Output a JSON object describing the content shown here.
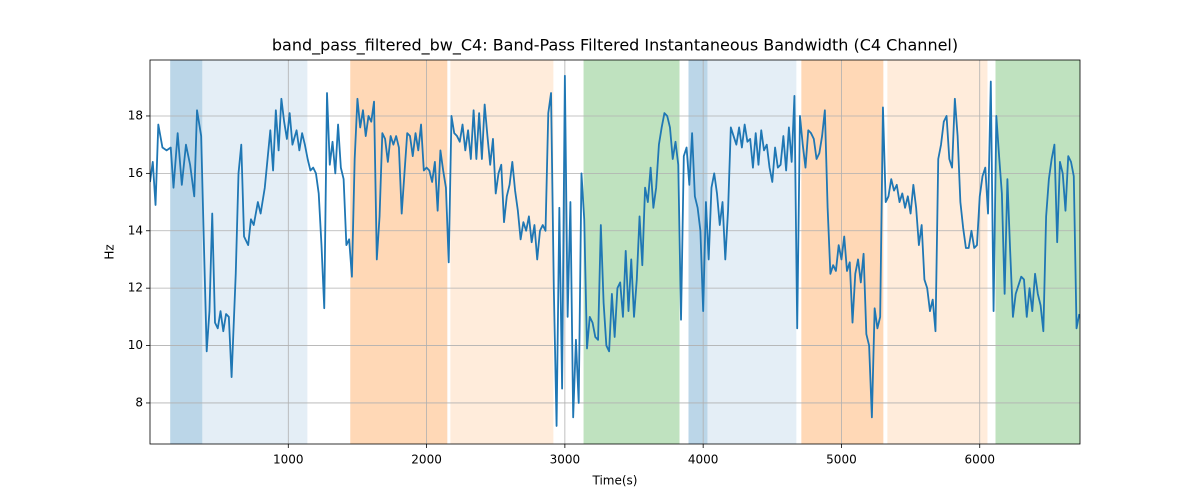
{
  "chart_data": {
    "type": "line",
    "title": "band_pass_filtered_bw_C4: Band-Pass Filtered Instantaneous Bandwidth (C4 Channel)",
    "xlabel": "Time(s)",
    "ylabel": "Hz",
    "xlim": [
      0,
      6725
    ],
    "ylim": [
      6.57,
      19.95
    ],
    "xticks": [
      1000,
      2000,
      3000,
      4000,
      5000,
      6000
    ],
    "yticks": [
      8,
      10,
      12,
      14,
      16,
      18
    ],
    "grid": true,
    "regions": [
      {
        "x0": 146,
        "x1": 378,
        "color": "#1f77b4",
        "alpha": 0.3
      },
      {
        "x0": 378,
        "x1": 1138,
        "color": "#1f77b4",
        "alpha": 0.12
      },
      {
        "x0": 1448,
        "x1": 2150,
        "color": "#ff7f0e",
        "alpha": 0.3
      },
      {
        "x0": 2172,
        "x1": 2917,
        "color": "#ff7f0e",
        "alpha": 0.15
      },
      {
        "x0": 3135,
        "x1": 3829,
        "color": "#2ca02c",
        "alpha": 0.3
      },
      {
        "x0": 3894,
        "x1": 4031,
        "color": "#1f77b4",
        "alpha": 0.3
      },
      {
        "x0": 4031,
        "x1": 4674,
        "color": "#1f77b4",
        "alpha": 0.12
      },
      {
        "x0": 4710,
        "x1": 5303,
        "color": "#ff7f0e",
        "alpha": 0.3
      },
      {
        "x0": 5332,
        "x1": 6056,
        "color": "#ff7f0e",
        "alpha": 0.15
      },
      {
        "x0": 6114,
        "x1": 6725,
        "color": "#2ca02c",
        "alpha": 0.3
      }
    ],
    "x": [
      0,
      20,
      40,
      60,
      90,
      120,
      150,
      170,
      200,
      230,
      260,
      290,
      320,
      340,
      370,
      390,
      410,
      430,
      450,
      470,
      490,
      510,
      530,
      550,
      570,
      590,
      620,
      640,
      660,
      680,
      710,
      730,
      750,
      780,
      800,
      830,
      850,
      870,
      890,
      910,
      930,
      950,
      970,
      990,
      1010,
      1030,
      1060,
      1080,
      1100,
      1120,
      1140,
      1160,
      1180,
      1200,
      1220,
      1240,
      1260,
      1280,
      1300,
      1320,
      1340,
      1360,
      1380,
      1400,
      1420,
      1440,
      1460,
      1480,
      1500,
      1520,
      1540,
      1560,
      1580,
      1600,
      1620,
      1640,
      1660,
      1680,
      1700,
      1720,
      1740,
      1760,
      1780,
      1800,
      1820,
      1840,
      1860,
      1880,
      1900,
      1920,
      1940,
      1960,
      1980,
      2000,
      2020,
      2040,
      2060,
      2080,
      2100,
      2120,
      2140,
      2160,
      2180,
      2200,
      2220,
      2240,
      2260,
      2280,
      2300,
      2320,
      2340,
      2360,
      2380,
      2400,
      2420,
      2440,
      2460,
      2480,
      2500,
      2520,
      2540,
      2560,
      2580,
      2600,
      2620,
      2640,
      2660,
      2680,
      2700,
      2720,
      2740,
      2760,
      2780,
      2800,
      2820,
      2840,
      2860,
      2880,
      2900,
      2920,
      2940,
      2960,
      2980,
      3000,
      3020,
      3040,
      3060,
      3080,
      3100,
      3120,
      3140,
      3160,
      3180,
      3200,
      3220,
      3240,
      3260,
      3280,
      3300,
      3320,
      3340,
      3360,
      3380,
      3400,
      3420,
      3440,
      3460,
      3480,
      3500,
      3520,
      3540,
      3560,
      3580,
      3600,
      3620,
      3640,
      3660,
      3680,
      3700,
      3720,
      3740,
      3760,
      3780,
      3800,
      3820,
      3840,
      3860,
      3880,
      3900,
      3920,
      3940,
      3960,
      3980,
      4000,
      4020,
      4040,
      4060,
      4080,
      4100,
      4120,
      4140,
      4160,
      4180,
      4200,
      4220,
      4240,
      4260,
      4280,
      4300,
      4320,
      4340,
      4360,
      4380,
      4400,
      4420,
      4440,
      4460,
      4480,
      4500,
      4520,
      4540,
      4560,
      4580,
      4600,
      4620,
      4640,
      4660,
      4680,
      4700,
      4720,
      4740,
      4760,
      4780,
      4800,
      4820,
      4840,
      4860,
      4880,
      4900,
      4920,
      4940,
      4960,
      4980,
      5000,
      5020,
      5040,
      5060,
      5080,
      5100,
      5120,
      5140,
      5160,
      5180,
      5200,
      5220,
      5240,
      5260,
      5280,
      5300,
      5320,
      5340,
      5360,
      5380,
      5400,
      5420,
      5440,
      5460,
      5480,
      5500,
      5520,
      5540,
      5560,
      5580,
      5600,
      5620,
      5640,
      5660,
      5680,
      5700,
      5720,
      5740,
      5760,
      5780,
      5800,
      5820,
      5840,
      5860,
      5880,
      5900,
      5920,
      5940,
      5960,
      5980,
      6000,
      6020,
      6040,
      6060,
      6080,
      6100,
      6120,
      6140,
      6160,
      6180,
      6200,
      6220,
      6240,
      6260,
      6280,
      6300,
      6320,
      6340,
      6360,
      6380,
      6400,
      6420,
      6440,
      6460,
      6480,
      6500,
      6520,
      6540,
      6560,
      6580,
      6600,
      6620,
      6640,
      6660,
      6680,
      6700,
      6720
    ],
    "series": [
      {
        "name": "band_pass_filtered_bw_C4",
        "color": "#1f77b4",
        "values": [
          15.7,
          16.4,
          14.9,
          17.7,
          16.9,
          16.8,
          16.9,
          15.5,
          17.4,
          15.6,
          17.0,
          16.3,
          15.2,
          18.2,
          17.3,
          13.5,
          9.8,
          11.2,
          14.6,
          10.8,
          10.6,
          11.2,
          10.5,
          11.1,
          11.0,
          8.9,
          12.5,
          16.0,
          17.0,
          13.8,
          13.5,
          14.4,
          14.2,
          15.0,
          14.6,
          15.5,
          16.5,
          17.5,
          16.1,
          18.2,
          16.8,
          18.6,
          17.8,
          17.2,
          18.1,
          17.0,
          17.5,
          16.8,
          17.4,
          17.0,
          16.5,
          16.1,
          16.2,
          16.0,
          15.3,
          13.5,
          11.3,
          18.8,
          16.3,
          17.1,
          16.0,
          17.7,
          16.2,
          15.8,
          13.5,
          13.7,
          12.4,
          16.5,
          18.6,
          17.6,
          18.2,
          17.3,
          18.0,
          17.8,
          18.5,
          13.0,
          14.5,
          17.4,
          17.2,
          16.4,
          17.3,
          17.0,
          17.3,
          16.9,
          14.6,
          16.0,
          17.4,
          17.3,
          16.6,
          17.4,
          16.8,
          17.7,
          16.1,
          16.2,
          16.1,
          15.7,
          16.4,
          14.7,
          16.8,
          16.1,
          15.5,
          12.9,
          18.0,
          17.4,
          17.3,
          17.1,
          17.7,
          16.8,
          17.5,
          16.5,
          18.2,
          16.5,
          18.1,
          16.5,
          18.4,
          17.3,
          16.3,
          17.2,
          15.3,
          16.0,
          16.3,
          14.3,
          15.2,
          15.6,
          16.4,
          15.4,
          14.7,
          13.7,
          14.3,
          14.0,
          14.5,
          13.6,
          14.2,
          13.0,
          14.0,
          14.2,
          14.0,
          18.1,
          18.8,
          12.0,
          7.2,
          14.8,
          8.5,
          19.4,
          11.0,
          15.0,
          7.5,
          10.2,
          8.0,
          16.0,
          14.4,
          9.9,
          11.0,
          10.8,
          10.3,
          10.2,
          14.2,
          11.5,
          10.0,
          9.8,
          11.8,
          10.3,
          12.0,
          12.2,
          11.0,
          13.3,
          11.2,
          13.0,
          11.0,
          12.3,
          14.5,
          12.8,
          15.5,
          15.0,
          16.2,
          14.8,
          15.5,
          17.0,
          17.6,
          18.1,
          18.0,
          17.6,
          16.5,
          17.1,
          16.3,
          10.9,
          16.6,
          16.9,
          15.6,
          17.4,
          15.2,
          14.8,
          14.0,
          11.2,
          15.0,
          13.0,
          15.5,
          16.0,
          15.3,
          14.2,
          15.0,
          13.0,
          14.7,
          17.6,
          17.3,
          17.0,
          17.6,
          16.9,
          17.7,
          17.1,
          17.2,
          16.2,
          17.4,
          16.3,
          17.5,
          16.8,
          17.0,
          16.2,
          15.7,
          16.9,
          16.2,
          16.3,
          17.3,
          16.1,
          17.6,
          16.4,
          18.7,
          10.6,
          18.0,
          17.0,
          16.2,
          17.5,
          17.4,
          17.2,
          16.5,
          16.7,
          17.3,
          18.2,
          14.8,
          12.5,
          12.8,
          12.6,
          13.5,
          13.0,
          13.8,
          12.6,
          12.9,
          10.8,
          12.5,
          13.0,
          12.2,
          13.2,
          10.4,
          10.0,
          7.5,
          11.3,
          10.6,
          11.0,
          18.3,
          15.0,
          15.2,
          15.8,
          15.4,
          15.6,
          15.0,
          15.3,
          14.8,
          15.2,
          14.6,
          15.6,
          14.8,
          13.5,
          14.2,
          12.3,
          12.0,
          11.2,
          11.6,
          10.5,
          16.5,
          17.0,
          17.8,
          18.0,
          16.5,
          16.2,
          18.6,
          17.3,
          15.0,
          14.1,
          13.4,
          13.4,
          14.0,
          13.4,
          13.5,
          15.2,
          15.9,
          16.2,
          14.6,
          19.2,
          11.2,
          18.0,
          16.6,
          15.3,
          11.8,
          15.8,
          13.3,
          11.0,
          11.8,
          12.1,
          12.4,
          12.3,
          11.0,
          12.0,
          11.2,
          12.5,
          11.8,
          11.4,
          10.5,
          14.5,
          15.8,
          16.5,
          17.0,
          13.6,
          16.4,
          16.0,
          14.7,
          16.6,
          16.4,
          15.9,
          10.6,
          11.1
        ]
      }
    ]
  }
}
